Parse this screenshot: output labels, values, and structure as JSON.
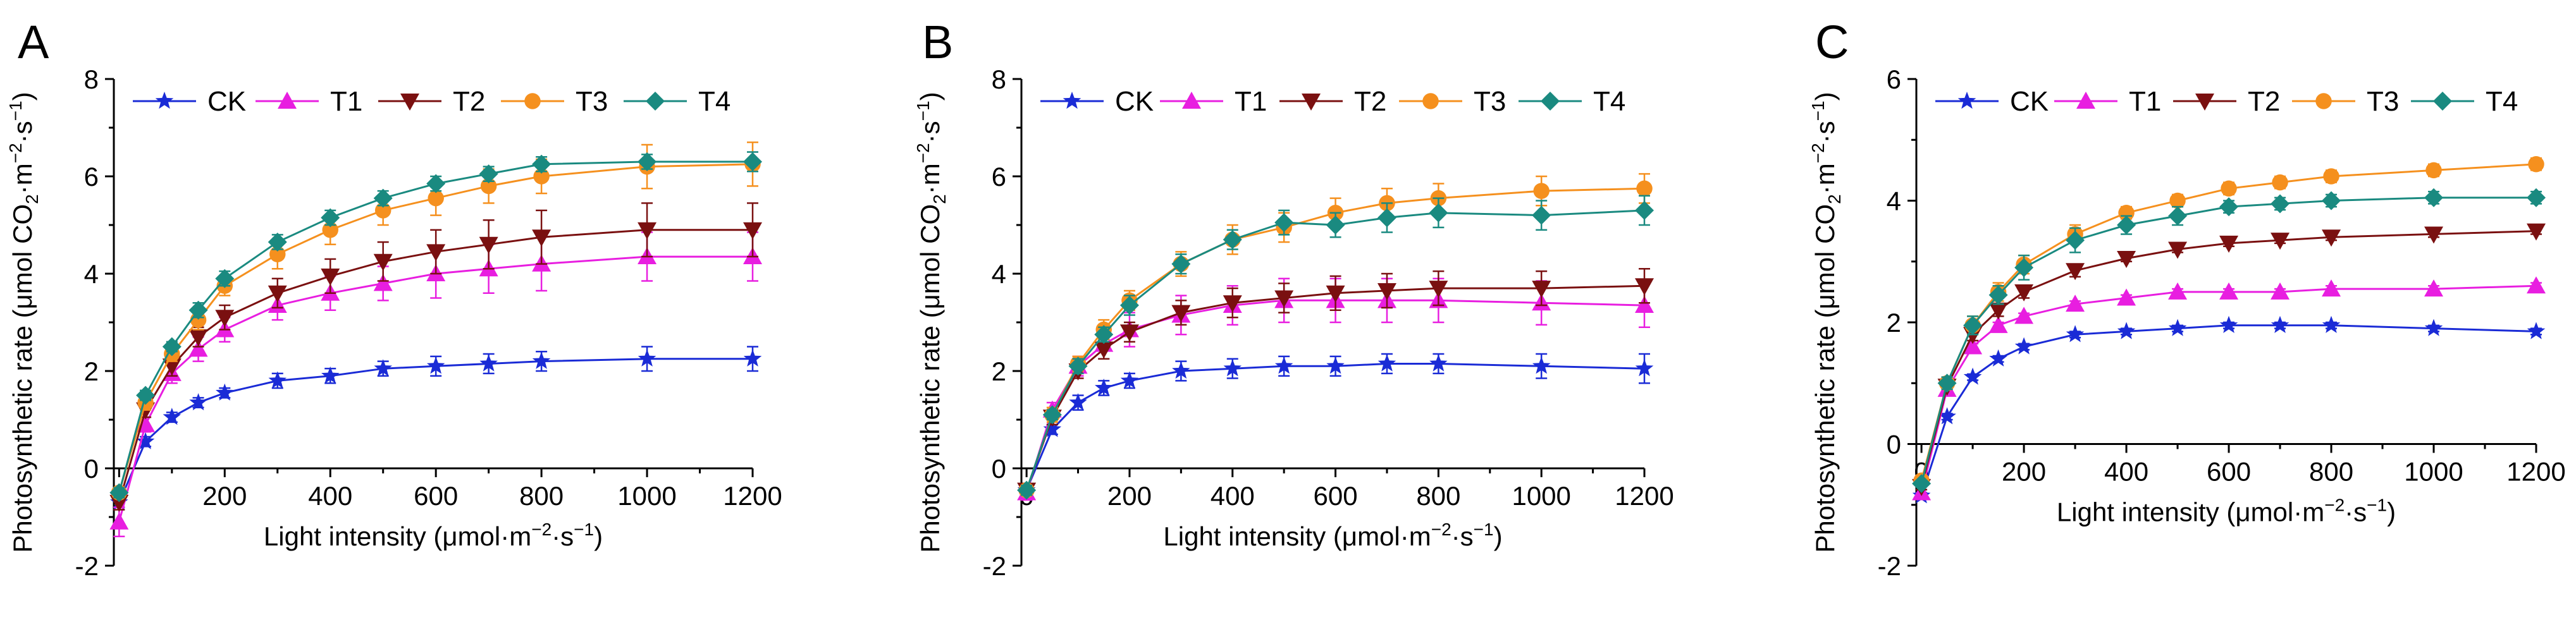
{
  "chart_data": [
    {
      "type": "line",
      "panel_label": "A",
      "xlabel_pre": "Light intensity (μmol·m",
      "xlabel_sup1": "−2",
      "xlabel_mid": "·s",
      "xlabel_sup2": "−1",
      "xlabel_post": ")",
      "ylabel_pre": "Photosynthetic rate (μmol CO",
      "ylabel_sub": "2",
      "ylabel_mid1": "·m",
      "ylabel_sup1": "−2",
      "ylabel_mid2": "·s",
      "ylabel_sup2": "−1",
      "ylabel_post": ")",
      "xlim": [
        -10,
        1200
      ],
      "ylim": [
        -2,
        8
      ],
      "xticks": [
        "0",
        "200",
        "400",
        "600",
        "800",
        "1000",
        "1200"
      ],
      "yticks": [
        "-2",
        "0",
        "2",
        "4",
        "6",
        "8"
      ],
      "x": [
        0,
        50,
        100,
        150,
        200,
        300,
        400,
        500,
        600,
        700,
        800,
        1000,
        1200
      ],
      "legend_position": "top",
      "series": [
        {
          "name": "CK",
          "values": [
            -0.7,
            0.55,
            1.05,
            1.35,
            1.55,
            1.8,
            1.9,
            2.05,
            2.1,
            2.15,
            2.2,
            2.25,
            2.25
          ],
          "errors": [
            0.1,
            0.1,
            0.1,
            0.1,
            0.1,
            0.15,
            0.15,
            0.15,
            0.2,
            0.2,
            0.2,
            0.25,
            0.25
          ]
        },
        {
          "name": "T1",
          "values": [
            -1.1,
            0.9,
            1.95,
            2.45,
            2.85,
            3.35,
            3.6,
            3.8,
            4.0,
            4.1,
            4.2,
            4.35,
            4.35
          ],
          "errors": [
            0.3,
            0.15,
            0.2,
            0.25,
            0.25,
            0.3,
            0.35,
            0.35,
            0.5,
            0.5,
            0.55,
            0.5,
            0.5
          ]
        },
        {
          "name": "T2",
          "values": [
            -0.7,
            1.2,
            2.1,
            2.7,
            3.1,
            3.6,
            3.95,
            4.25,
            4.45,
            4.6,
            4.75,
            4.9,
            4.9
          ],
          "errors": [
            0.15,
            0.15,
            0.2,
            0.2,
            0.25,
            0.3,
            0.35,
            0.4,
            0.45,
            0.5,
            0.55,
            0.55,
            0.55
          ]
        },
        {
          "name": "T3",
          "values": [
            -0.5,
            1.35,
            2.35,
            3.05,
            3.75,
            4.4,
            4.9,
            5.3,
            5.55,
            5.8,
            6.0,
            6.2,
            6.25
          ],
          "errors": [
            0.1,
            0.15,
            0.15,
            0.2,
            0.2,
            0.3,
            0.3,
            0.3,
            0.35,
            0.35,
            0.35,
            0.45,
            0.45
          ]
        },
        {
          "name": "T4",
          "values": [
            -0.5,
            1.5,
            2.5,
            3.25,
            3.9,
            4.65,
            5.15,
            5.55,
            5.85,
            6.05,
            6.25,
            6.3,
            6.3
          ],
          "errors": [
            0.1,
            0.1,
            0.1,
            0.15,
            0.15,
            0.15,
            0.15,
            0.15,
            0.15,
            0.15,
            0.15,
            0.15,
            0.2
          ]
        }
      ]
    },
    {
      "type": "line",
      "panel_label": "B",
      "xlabel_pre": "Light intensity (μmol·m",
      "xlabel_sup1": "−2",
      "xlabel_mid": "·s",
      "xlabel_sup2": "−1",
      "xlabel_post": ")",
      "ylabel_pre": "Photosynthetic rate (μmol CO",
      "ylabel_sub": "2",
      "ylabel_mid1": "·m",
      "ylabel_sup1": "−2",
      "ylabel_mid2": "·s",
      "ylabel_sup2": "−1",
      "ylabel_post": ")",
      "xlim": [
        -10,
        1200
      ],
      "ylim": [
        -2,
        8
      ],
      "xticks": [
        "0",
        "200",
        "400",
        "600",
        "800",
        "1000",
        "1200"
      ],
      "yticks": [
        "-2",
        "0",
        "2",
        "4",
        "6",
        "8"
      ],
      "x": [
        0,
        50,
        100,
        150,
        200,
        300,
        400,
        500,
        600,
        700,
        800,
        1000,
        1200
      ],
      "legend_position": "top",
      "series": [
        {
          "name": "CK",
          "values": [
            -0.45,
            0.8,
            1.35,
            1.65,
            1.8,
            2.0,
            2.05,
            2.1,
            2.1,
            2.15,
            2.15,
            2.1,
            2.05
          ],
          "errors": [
            0.1,
            0.1,
            0.15,
            0.15,
            0.15,
            0.2,
            0.2,
            0.2,
            0.2,
            0.2,
            0.2,
            0.25,
            0.3
          ]
        },
        {
          "name": "T1",
          "values": [
            -0.5,
            1.2,
            2.1,
            2.55,
            2.85,
            3.15,
            3.35,
            3.45,
            3.45,
            3.45,
            3.45,
            3.4,
            3.35
          ],
          "errors": [
            0.15,
            0.15,
            0.2,
            0.3,
            0.35,
            0.4,
            0.4,
            0.45,
            0.45,
            0.45,
            0.45,
            0.45,
            0.45
          ]
        },
        {
          "name": "T2",
          "values": [
            -0.45,
            1.05,
            2.0,
            2.45,
            2.8,
            3.2,
            3.4,
            3.5,
            3.6,
            3.65,
            3.7,
            3.7,
            3.75
          ],
          "errors": [
            0.1,
            0.15,
            0.15,
            0.2,
            0.2,
            0.25,
            0.3,
            0.3,
            0.35,
            0.35,
            0.35,
            0.35,
            0.35
          ]
        },
        {
          "name": "T3",
          "values": [
            -0.45,
            1.1,
            2.15,
            2.85,
            3.45,
            4.2,
            4.7,
            4.95,
            5.25,
            5.45,
            5.55,
            5.7,
            5.75
          ],
          "errors": [
            0.1,
            0.15,
            0.15,
            0.2,
            0.2,
            0.25,
            0.3,
            0.3,
            0.3,
            0.3,
            0.3,
            0.3,
            0.3
          ]
        },
        {
          "name": "T4",
          "values": [
            -0.45,
            1.1,
            2.1,
            2.75,
            3.35,
            4.2,
            4.7,
            5.05,
            5.0,
            5.15,
            5.25,
            5.2,
            5.3
          ],
          "errors": [
            0.1,
            0.1,
            0.15,
            0.15,
            0.2,
            0.2,
            0.2,
            0.25,
            0.25,
            0.3,
            0.3,
            0.3,
            0.3
          ]
        }
      ]
    },
    {
      "type": "line",
      "panel_label": "C",
      "xlabel_pre": "Light intensity (μmol·m",
      "xlabel_sup1": "−2",
      "xlabel_mid": "·s",
      "xlabel_sup2": "−1",
      "xlabel_post": ")",
      "ylabel_pre": "Photosynthetic rate (μmol CO",
      "ylabel_sub": "2",
      "ylabel_mid1": "·m",
      "ylabel_sup1": "−2",
      "ylabel_mid2": "·s",
      "ylabel_sup2": "−1",
      "ylabel_post": ")",
      "xlim": [
        -10,
        1200
      ],
      "ylim": [
        -2,
        6
      ],
      "xticks": [
        "0",
        "200",
        "400",
        "600",
        "800",
        "1000",
        "1200"
      ],
      "yticks": [
        "-2",
        "0",
        "2",
        "4",
        "6"
      ],
      "x": [
        0,
        50,
        100,
        150,
        200,
        300,
        400,
        500,
        600,
        700,
        800,
        1000,
        1200
      ],
      "legend_position": "top",
      "series": [
        {
          "name": "CK",
          "values": [
            -0.85,
            0.45,
            1.1,
            1.4,
            1.6,
            1.8,
            1.85,
            1.9,
            1.95,
            1.95,
            1.95,
            1.9,
            1.85
          ],
          "errors": [
            0.05,
            0.05,
            0.05,
            0.05,
            0.05,
            0.05,
            0.05,
            0.05,
            0.05,
            0.05,
            0.05,
            0.05,
            0.05
          ]
        },
        {
          "name": "T1",
          "values": [
            -0.8,
            0.9,
            1.6,
            1.95,
            2.1,
            2.3,
            2.4,
            2.5,
            2.5,
            2.5,
            2.55,
            2.55,
            2.6
          ],
          "errors": [
            0.05,
            0.05,
            0.05,
            0.05,
            0.05,
            0.05,
            0.05,
            0.05,
            0.05,
            0.05,
            0.05,
            0.05,
            0.05
          ]
        },
        {
          "name": "T2",
          "values": [
            -0.7,
            0.95,
            1.8,
            2.2,
            2.5,
            2.85,
            3.05,
            3.2,
            3.3,
            3.35,
            3.4,
            3.45,
            3.5
          ],
          "errors": [
            0.05,
            0.05,
            0.1,
            0.1,
            0.1,
            0.1,
            0.05,
            0.05,
            0.05,
            0.05,
            0.05,
            0.05,
            0.05
          ]
        },
        {
          "name": "T3",
          "values": [
            -0.6,
            1.0,
            1.95,
            2.5,
            2.95,
            3.45,
            3.8,
            4.0,
            4.2,
            4.3,
            4.4,
            4.5,
            4.6
          ],
          "errors": [
            0.05,
            0.1,
            0.15,
            0.15,
            0.15,
            0.15,
            0.1,
            0.1,
            0.1,
            0.1,
            0.1,
            0.1,
            0.1
          ]
        },
        {
          "name": "T4",
          "values": [
            -0.65,
            1.0,
            1.95,
            2.45,
            2.9,
            3.35,
            3.6,
            3.75,
            3.9,
            3.95,
            4.0,
            4.05,
            4.05
          ],
          "errors": [
            0.05,
            0.1,
            0.15,
            0.15,
            0.2,
            0.2,
            0.15,
            0.15,
            0.1,
            0.1,
            0.1,
            0.1,
            0.1
          ]
        }
      ]
    }
  ],
  "series_styles": [
    {
      "name": "CK",
      "color": "#1a2bd6",
      "marker": "star"
    },
    {
      "name": "T1",
      "color": "#e81ee0",
      "marker": "triangle-up"
    },
    {
      "name": "T2",
      "color": "#7a1010",
      "marker": "triangle-down"
    },
    {
      "name": "T3",
      "color": "#f5901e",
      "marker": "circle"
    },
    {
      "name": "T4",
      "color": "#1a8a80",
      "marker": "diamond"
    }
  ]
}
